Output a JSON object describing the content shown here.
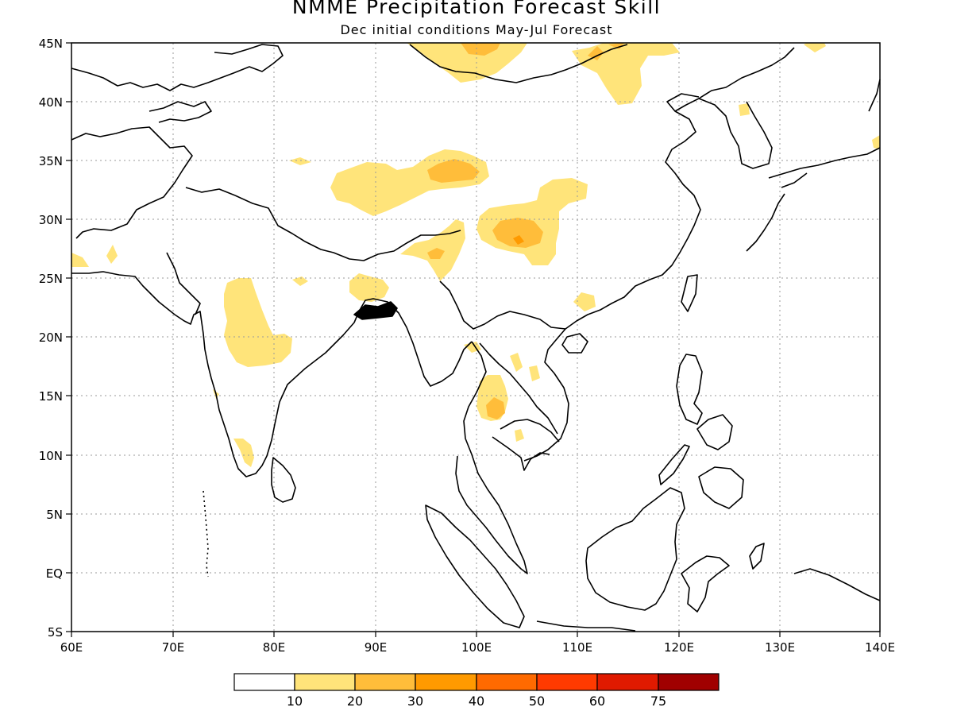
{
  "title": "NMME Precipitation Forecast Skill",
  "subtitle": "Dec initial conditions  May-Jul Forecast",
  "map": {
    "lon_range": [
      60,
      140
    ],
    "lat_range": [
      -5,
      45
    ],
    "x_ticks": [
      "60E",
      "70E",
      "80E",
      "90E",
      "100E",
      "110E",
      "120E",
      "130E",
      "140E"
    ],
    "y_ticks": [
      "45N",
      "40N",
      "35N",
      "30N",
      "25N",
      "20N",
      "15N",
      "10N",
      "5N",
      "EQ",
      "5S"
    ],
    "grid": "dotted",
    "coastline_color": "#000000"
  },
  "colorbar": {
    "levels": [
      "10",
      "20",
      "30",
      "40",
      "50",
      "60",
      "75"
    ],
    "colors": [
      "#ffffff",
      "#ffe47a",
      "#ffbd3a",
      "#ff9a00",
      "#ff6a00",
      "#ff3a00",
      "#e01a00",
      "#a00000"
    ]
  },
  "skill_regions": [
    {
      "name": "northwest-mongolia",
      "level": 1
    },
    {
      "name": "northeast-mongolia",
      "level": 1
    },
    {
      "name": "tibet-north",
      "level": 1
    },
    {
      "name": "tibet-north-core",
      "level": 2
    },
    {
      "name": "sichuan-yunnan",
      "level": 1
    },
    {
      "name": "sichuan-core",
      "level": 2
    },
    {
      "name": "central-india",
      "level": 1
    },
    {
      "name": "bangladesh",
      "level": 1
    },
    {
      "name": "thailand",
      "level": 1
    },
    {
      "name": "thailand-core",
      "level": 2
    },
    {
      "name": "korea-dot",
      "level": 1
    }
  ]
}
